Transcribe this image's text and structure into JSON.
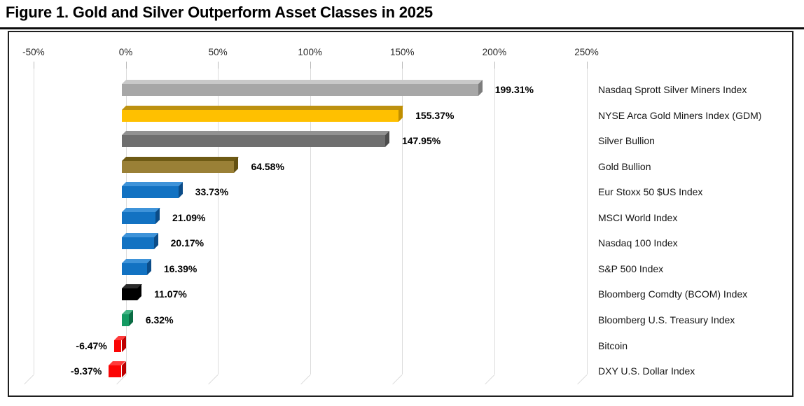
{
  "figure": {
    "title": "Figure 1. Gold and Silver Outperform Asset Classes in 2025"
  },
  "chart_data": {
    "type": "bar",
    "orientation": "horizontal",
    "style": "3d",
    "title": "Figure 1. Gold and Silver Outperform Asset Classes in 2025",
    "x_axis": {
      "position": "top",
      "min": -50,
      "max": 250,
      "unit": "%",
      "gridlines": true,
      "ticks": [
        {
          "label": "-50%",
          "value": -50
        },
        {
          "label": "0%",
          "value": 0
        },
        {
          "label": "50%",
          "value": 50
        },
        {
          "label": "100%",
          "value": 100
        },
        {
          "label": "150%",
          "value": 150
        },
        {
          "label": "200%",
          "value": 200
        },
        {
          "label": "250%",
          "value": 250
        }
      ]
    },
    "categories_position": "right",
    "bars": [
      {
        "category": "Nasdaq Sprott Silver Miners Index",
        "value": 199.31,
        "label": "199.31%",
        "colors": {
          "face": "#a7a7a7",
          "top": "#c9c9c9",
          "side": "#7d7d7d"
        }
      },
      {
        "category": "NYSE Arca Gold Miners Index (GDM)",
        "value": 155.37,
        "label": "155.37%",
        "colors": {
          "face": "#ffc000",
          "top": "#bd9110",
          "side": "#c08e00"
        }
      },
      {
        "category": "Silver Bullion",
        "value": 147.95,
        "label": "147.95%",
        "colors": {
          "face": "#6f6f6f",
          "top": "#929292",
          "side": "#4c4c4c"
        }
      },
      {
        "category": "Gold Bullion",
        "value": 64.58,
        "label": "64.58%",
        "colors": {
          "face": "#9a8036",
          "top": "#6e5a14",
          "side": "#645112"
        }
      },
      {
        "category": "Eur Stoxx 50 $US Index",
        "value": 33.73,
        "label": "33.73%",
        "colors": {
          "face": "#1272c2",
          "top": "#3e93d9",
          "side": "#0b4c88"
        }
      },
      {
        "category": "MSCI World Index",
        "value": 21.09,
        "label": "21.09%",
        "colors": {
          "face": "#1272c2",
          "top": "#3e93d9",
          "side": "#0b4c88"
        }
      },
      {
        "category": "Nasdaq 100 Index",
        "value": 20.17,
        "label": "20.17%",
        "colors": {
          "face": "#1272c2",
          "top": "#3e93d9",
          "side": "#0b4c88"
        }
      },
      {
        "category": "S&P 500 Index",
        "value": 16.39,
        "label": "16.39%",
        "colors": {
          "face": "#1272c2",
          "top": "#3e93d9",
          "side": "#0b4c88"
        }
      },
      {
        "category": "Bloomberg Comdty (BCOM) Index",
        "value": 11.07,
        "label": "11.07%",
        "colors": {
          "face": "#000000",
          "top": "#2b2b2b",
          "side": "#000000"
        }
      },
      {
        "category": "Bloomberg U.S. Treasury Index",
        "value": 6.32,
        "label": "6.32%",
        "colors": {
          "face": "#149a62",
          "top": "#43b384",
          "side": "#0a6c44"
        }
      },
      {
        "category": "Bitcoin",
        "value": -6.47,
        "label": "-6.47%",
        "colors": {
          "face": "#fb0505",
          "top": "#ff3b3b",
          "side": "#bd0000"
        }
      },
      {
        "category": "DXY U.S. Dollar Index",
        "value": -9.37,
        "label": "-9.37%",
        "colors": {
          "face": "#fb0505",
          "top": "#ff3b3b",
          "side": "#bd0000"
        }
      }
    ]
  }
}
